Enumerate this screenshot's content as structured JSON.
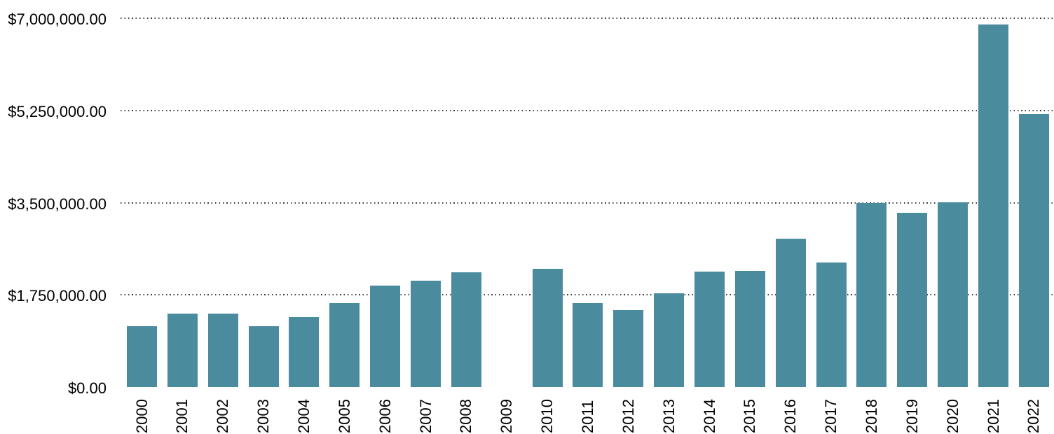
{
  "chart_data": {
    "type": "bar",
    "title": "",
    "xlabel": "",
    "ylabel": "",
    "categories": [
      "2000",
      "2001",
      "2002",
      "2003",
      "2004",
      "2005",
      "2006",
      "2007",
      "2008",
      "2009",
      "2010",
      "2011",
      "2012",
      "2013",
      "2014",
      "2015",
      "2016",
      "2017",
      "2018",
      "2019",
      "2020",
      "2021",
      "2022"
    ],
    "values": [
      1150000,
      1390000,
      1390000,
      1150000,
      1330000,
      1590000,
      1930000,
      2020000,
      2180000,
      0,
      2240000,
      1590000,
      1460000,
      1780000,
      2190000,
      2210000,
      2820000,
      2370000,
      3500000,
      3310000,
      3510000,
      6880000,
      5180000
    ],
    "ylim": [
      0,
      7000000
    ],
    "yticks": [
      {
        "value": 0,
        "label": "$0.00"
      },
      {
        "value": 1750000,
        "label": "$1,750,000.00"
      },
      {
        "value": 3500000,
        "label": "$3,500,000.00"
      },
      {
        "value": 5250000,
        "label": "$5,250,000.00"
      },
      {
        "value": 7000000,
        "label": "$7,000,000.00"
      }
    ],
    "grid": "horizontal-dotted",
    "legend": "none",
    "bar_color": "#4A8C9E",
    "text_color": "#000000",
    "background_color": "#ffffff",
    "x_tick_rotation_degrees": 90,
    "notes": "no bar rendered for 2009 (zero value)"
  }
}
